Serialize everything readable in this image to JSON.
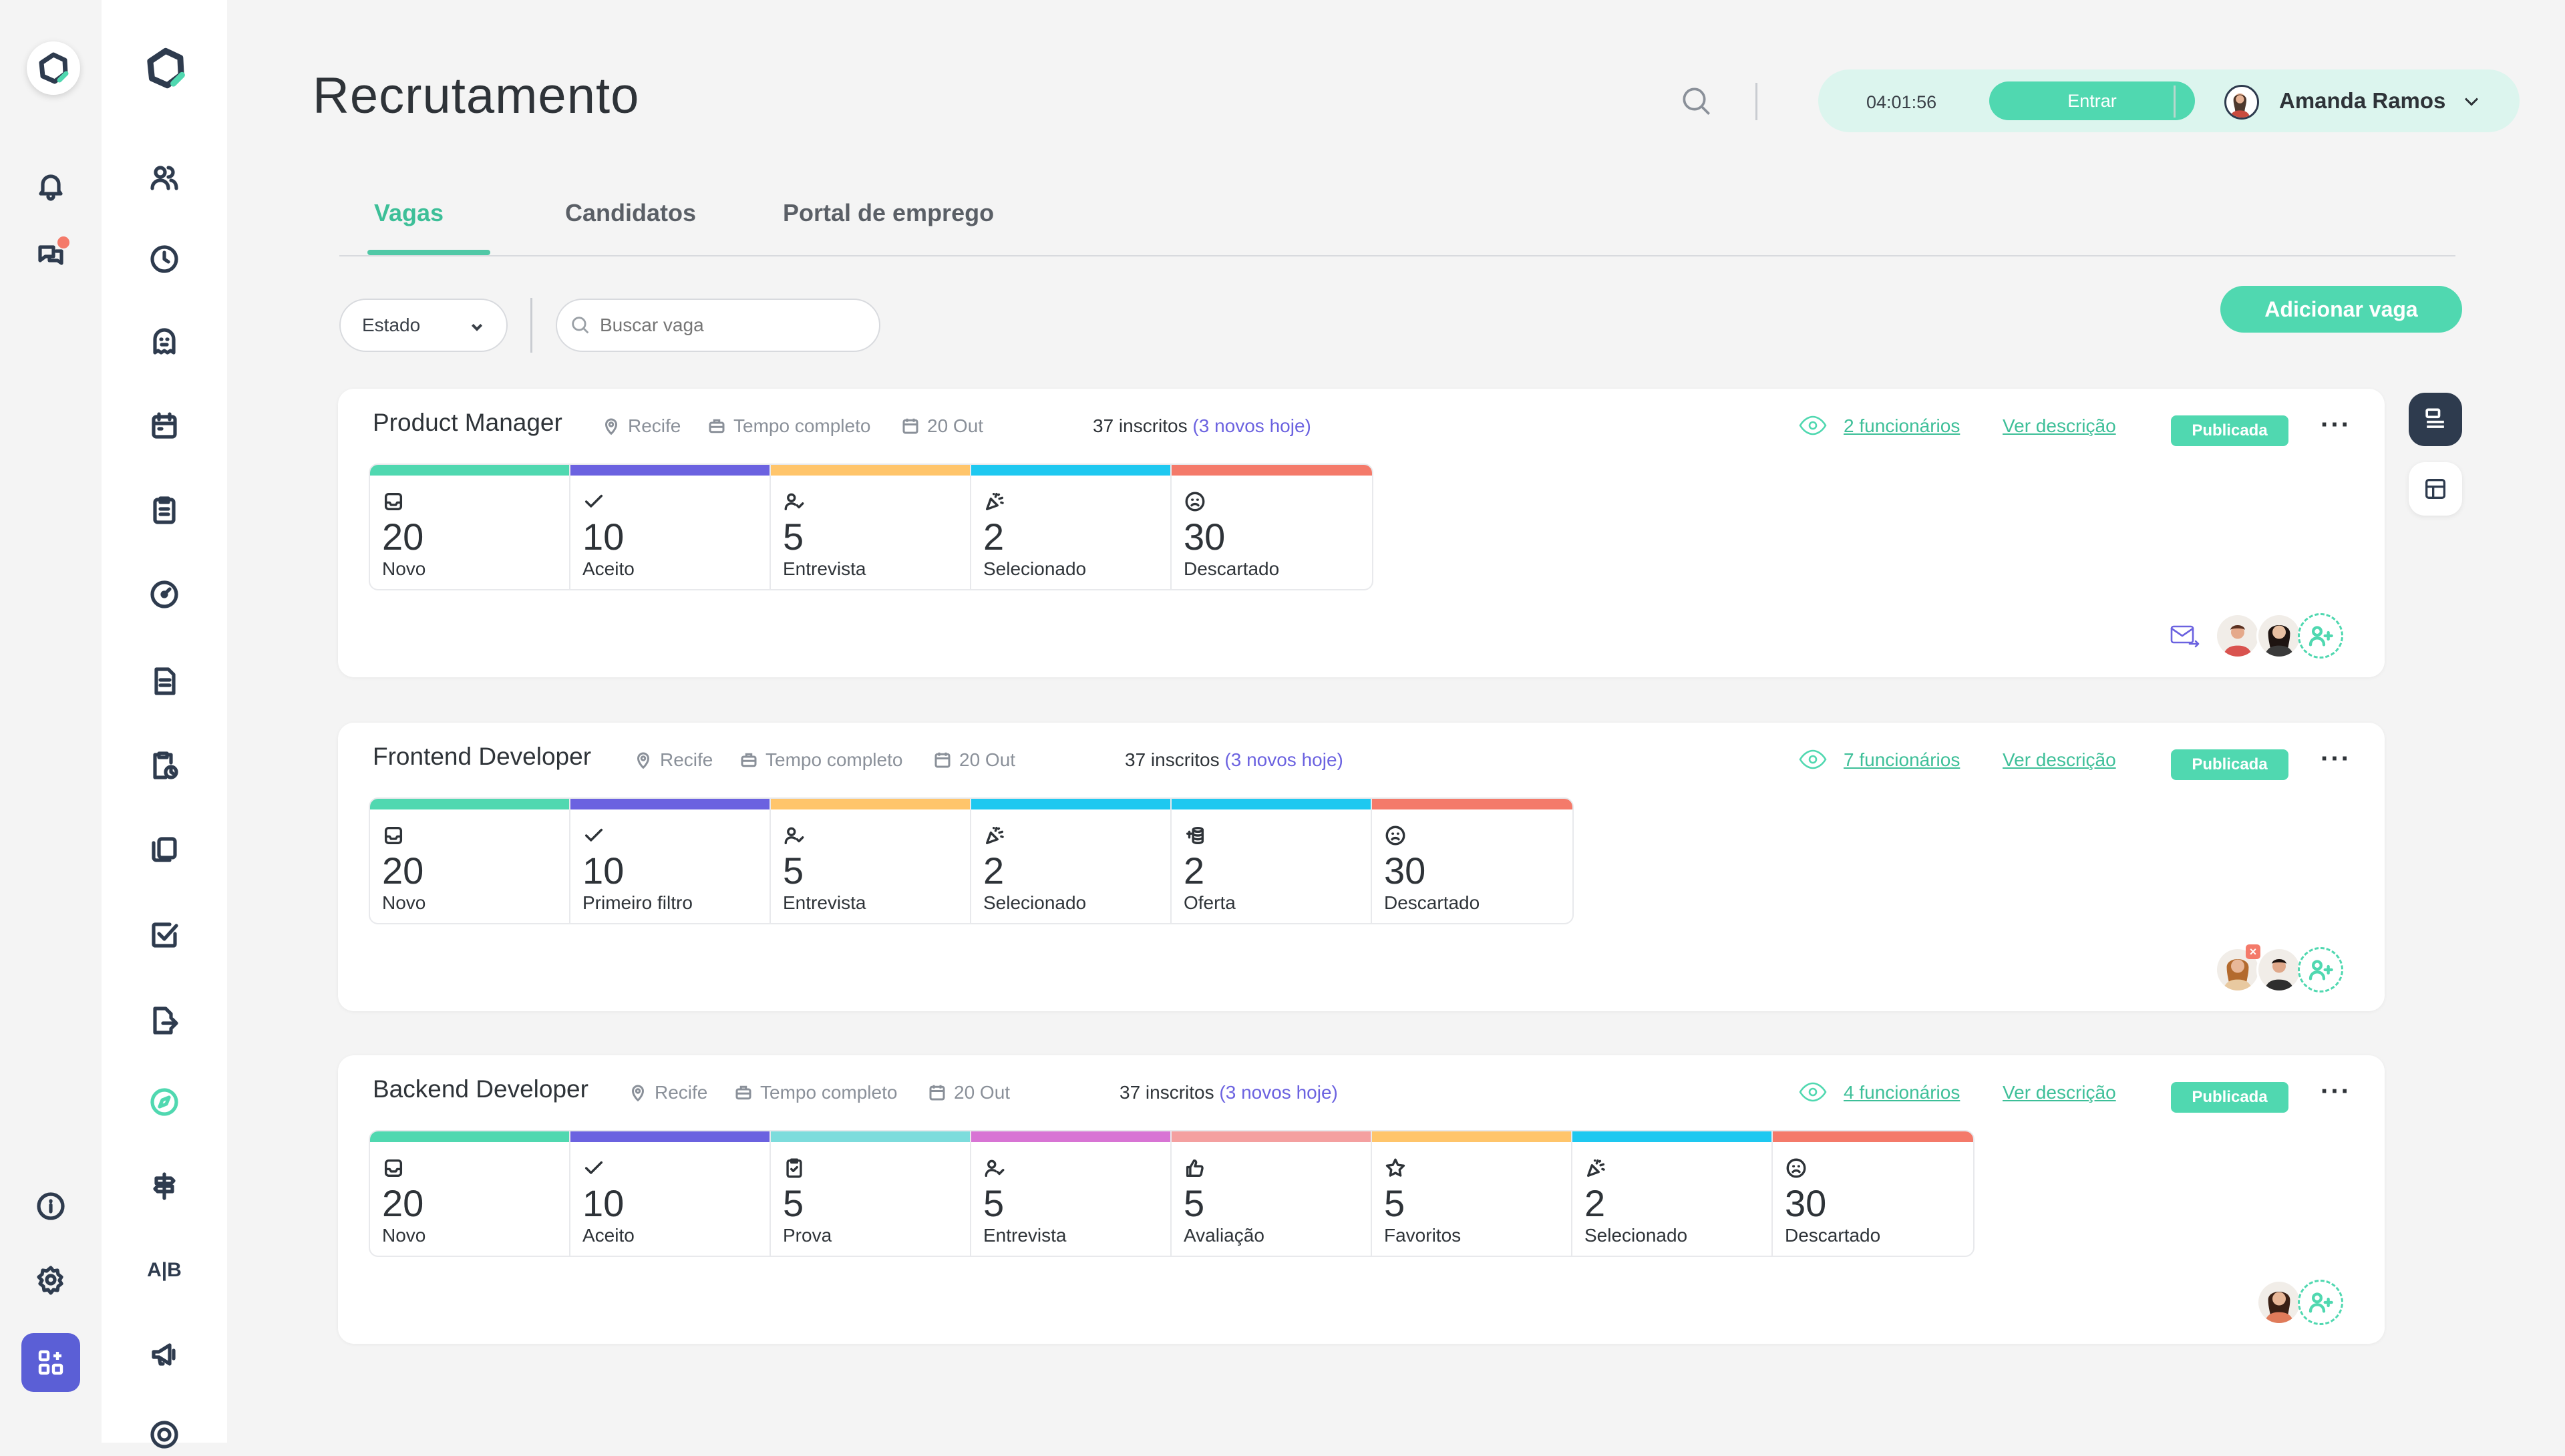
{
  "page": {
    "title": "Recrutamento"
  },
  "header": {
    "time": "04:01:56",
    "enter_label": "Entrar",
    "user_name": "Amanda Ramos"
  },
  "tabs": [
    {
      "label": "Vagas"
    },
    {
      "label": "Candidatos"
    },
    {
      "label": "Portal de emprego"
    }
  ],
  "filters": {
    "state_label": "Estado",
    "search_placeholder": "Buscar vaga"
  },
  "add_button": "Adicionar vaga",
  "jobs": [
    {
      "title": "Product Manager",
      "location": "Recife",
      "type": "Tempo completo",
      "date": "20 Out",
      "applicants": "37 inscritos",
      "new_today": "(3 novos hoje)",
      "employees": "2 funcionários",
      "description": "Ver descrição",
      "status": "Publicada",
      "stages": [
        {
          "count": "20",
          "label": "Novo",
          "icon": "inbox-icon",
          "color": "#50d8b0"
        },
        {
          "count": "10",
          "label": "Aceito",
          "icon": "check-icon",
          "color": "#6b62e0"
        },
        {
          "count": "5",
          "label": "Entrevista",
          "icon": "person-check-icon",
          "color": "#ffc56b"
        },
        {
          "count": "2",
          "label": "Selecionado",
          "icon": "party-icon",
          "color": "#1ec8f0"
        },
        {
          "count": "30",
          "label": "Descartado",
          "icon": "sad-face-icon",
          "color": "#f47a6a"
        }
      ]
    },
    {
      "title": "Frontend Developer",
      "location": "Recife",
      "type": "Tempo completo",
      "date": "20 Out",
      "applicants": "37 inscritos",
      "new_today": "(3 novos hoje)",
      "employees": "7 funcionários",
      "description": "Ver descrição",
      "status": "Publicada",
      "stages": [
        {
          "count": "20",
          "label": "Novo",
          "icon": "inbox-icon",
          "color": "#50d8b0"
        },
        {
          "count": "10",
          "label": "Primeiro filtro",
          "icon": "check-icon",
          "color": "#6b62e0"
        },
        {
          "count": "5",
          "label": "Entrevista",
          "icon": "person-check-icon",
          "color": "#ffc56b"
        },
        {
          "count": "2",
          "label": "Selecionado",
          "icon": "party-icon",
          "color": "#1ec8f0"
        },
        {
          "count": "2",
          "label": "Oferta",
          "icon": "coins-icon",
          "color": "#1ec8f0"
        },
        {
          "count": "30",
          "label": "Descartado",
          "icon": "sad-face-icon",
          "color": "#f47a6a"
        }
      ]
    },
    {
      "title": "Backend Developer",
      "location": "Recife",
      "type": "Tempo completo",
      "date": "20 Out",
      "applicants": "37 inscritos",
      "new_today": "(3 novos hoje)",
      "employees": "4 funcionários",
      "description": "Ver descrição",
      "status": "Publicada",
      "stages": [
        {
          "count": "20",
          "label": "Novo",
          "icon": "inbox-icon",
          "color": "#50d8b0"
        },
        {
          "count": "10",
          "label": "Aceito",
          "icon": "check-icon",
          "color": "#6b62e0"
        },
        {
          "count": "5",
          "label": "Prova",
          "icon": "clipboard-check-icon",
          "color": "#7ddcdc"
        },
        {
          "count": "5",
          "label": "Entrevista",
          "icon": "person-check-icon",
          "color": "#d874d4"
        },
        {
          "count": "5",
          "label": "Avaliação",
          "icon": "thumbs-up-icon",
          "color": "#f4a0a0"
        },
        {
          "count": "5",
          "label": "Favoritos",
          "icon": "star-icon",
          "color": "#ffc56b"
        },
        {
          "count": "2",
          "label": "Selecionado",
          "icon": "party-icon",
          "color": "#1ec8f0"
        },
        {
          "count": "30",
          "label": "Descartado",
          "icon": "sad-face-icon",
          "color": "#f47a6a"
        }
      ]
    }
  ],
  "nav_rail": {
    "items": [
      "bell-icon",
      "chat-icon",
      "info-icon",
      "settings-icon",
      "apps-icon"
    ]
  },
  "sidebar": {
    "items": [
      "people-icon",
      "clock-icon",
      "ghost-icon",
      "calendar-icon",
      "clipboard-icon",
      "gauge-icon",
      "document-icon",
      "clipboard-clock-icon",
      "files-icon",
      "checkbox-icon",
      "document-export-icon",
      "compass-icon",
      "signpost-icon",
      "ab-icon",
      "megaphone-icon",
      "target-icon"
    ],
    "ab_text": "A|B"
  },
  "colors": {
    "accent": "#50d8b0",
    "accent_text": "#3dbf98",
    "purple": "#6b62e0",
    "navy": "#2e3b4e"
  }
}
